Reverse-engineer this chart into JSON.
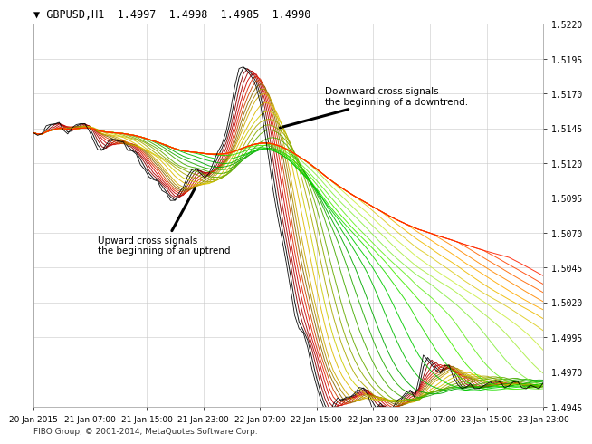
{
  "title": "▼ GBPUSD,H1  1.4997  1.4998  1.4985  1.4990",
  "footer": "FIBO Group, © 2001-2014, MetaQuotes Software Corp.",
  "y_min": 1.4945,
  "y_max": 1.522,
  "y_ticks": [
    1.4945,
    1.497,
    1.4995,
    1.502,
    1.5045,
    1.507,
    1.5095,
    1.512,
    1.5145,
    1.517,
    1.5195,
    1.522
  ],
  "x_labels": [
    "20 Jan 2015",
    "21 Jan 07:00",
    "21 Jan 15:00",
    "21 Jan 23:00",
    "22 Jan 07:00",
    "22 Jan 15:00",
    "22 Jan 23:00",
    "23 Jan 07:00",
    "23 Jan 15:00",
    "23 Jan 23:00"
  ],
  "annotation1_text": "Upward cross signals\nthe beginning of an uptrend",
  "annotation2_text": "Downward cross signals\nthe beginning of a downtrend.",
  "background_color": "#FFFFFF",
  "plot_bg_color": "#FFFFFF",
  "grid_color": "#C8C8C8",
  "text_color": "#000000",
  "num_ma_lines": 32,
  "rainbow_colors_fast_to_slow": [
    "#000000",
    "#8B0000",
    "#AA0000",
    "#CC0000",
    "#DD2200",
    "#CC4400",
    "#886600",
    "#AA8800",
    "#CCAA00",
    "#DDBB00",
    "#CCCC00",
    "#AAAA00",
    "#88AA00",
    "#66AA00",
    "#44AA00",
    "#22AA00",
    "#00AA00",
    "#00BB00",
    "#00CC00",
    "#22DD00",
    "#44EE00",
    "#66EE22",
    "#88EE44",
    "#AAEE44",
    "#CCEE44",
    "#DDCC22",
    "#EEBB00",
    "#FFAA00",
    "#FF8800",
    "#FF6600",
    "#FF4400",
    "#FF2200"
  ],
  "n_points": 120
}
